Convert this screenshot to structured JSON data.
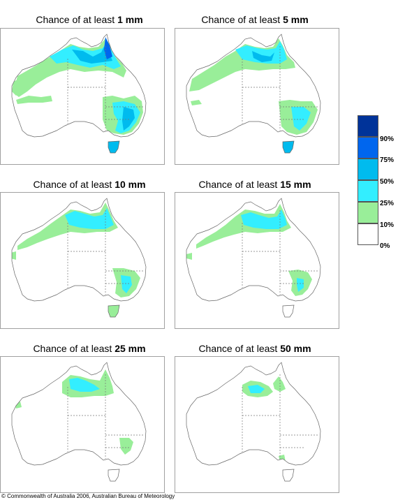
{
  "panels": [
    {
      "prefix": "Chance of at least ",
      "amount": "1 mm"
    },
    {
      "prefix": "Chance of at least ",
      "amount": "5 mm"
    },
    {
      "prefix": "Chance of at least ",
      "amount": "10 mm"
    },
    {
      "prefix": "Chance of at least ",
      "amount": "15 mm"
    },
    {
      "prefix": "Chance of at least ",
      "amount": "25 mm"
    },
    {
      "prefix": "Chance of at least ",
      "amount": "50 mm"
    }
  ],
  "legend": {
    "labels": [
      "90%",
      "75%",
      "50%",
      "25%",
      "10%",
      "0%"
    ],
    "colors": [
      "#003399",
      "#0066ee",
      "#00bbee",
      "#33eeff",
      "#99ee99",
      "#ffffff"
    ]
  },
  "copyright": "© Commonwealth of Australia 2006, Australian Bureau of Meteorology"
}
